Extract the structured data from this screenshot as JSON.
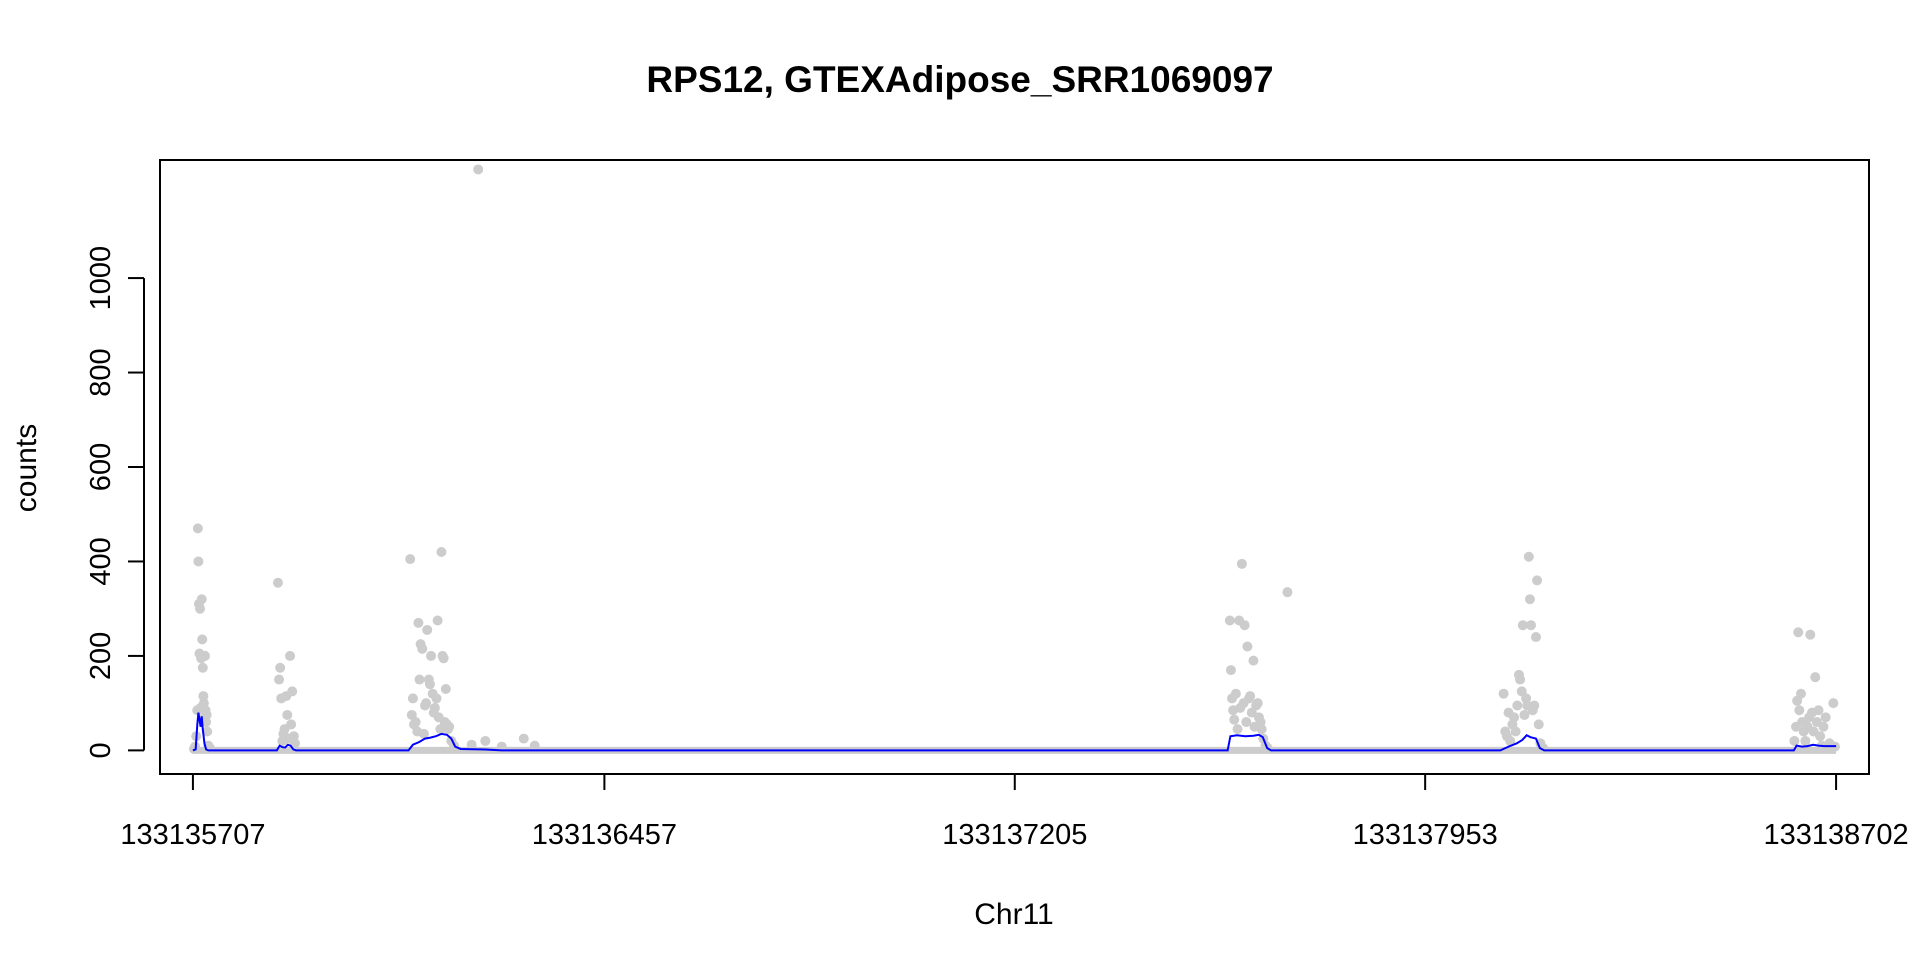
{
  "chart_data": {
    "type": "scatter",
    "title": "RPS12, GTEXAdipose_SRR1069097",
    "xlabel": "Chr11",
    "ylabel": "counts",
    "xlim": [
      133135647,
      133138762
    ],
    "ylim": [
      -50,
      1250
    ],
    "x_ticks": [
      133135707,
      133136457,
      133137205,
      133137953,
      133138702
    ],
    "x_tick_labels": [
      "133135707",
      "133136457",
      "133137205",
      "133137953",
      "133138702"
    ],
    "y_ticks": [
      0,
      200,
      400,
      600,
      800,
      1000
    ],
    "y_tick_labels": [
      "0",
      "200",
      "400",
      "600",
      "800",
      "1000"
    ],
    "grid": false,
    "point_color": "#cccccc",
    "line_color": "#0000ff",
    "series": [
      {
        "type": "scatter",
        "points": [
          [
            133135709,
            3
          ],
          [
            133135711,
            8
          ],
          [
            133135713,
            30
          ],
          [
            133135715,
            85
          ],
          [
            133135716,
            470
          ],
          [
            133135717,
            400
          ],
          [
            133135718,
            310
          ],
          [
            133135719,
            205
          ],
          [
            133135720,
            300
          ],
          [
            133135721,
            90
          ],
          [
            133135722,
            195
          ],
          [
            133135723,
            320
          ],
          [
            133135724,
            235
          ],
          [
            133135725,
            175
          ],
          [
            133135726,
            115
          ],
          [
            133135727,
            100
          ],
          [
            133135728,
            70
          ],
          [
            133135729,
            200
          ],
          [
            133135730,
            85
          ],
          [
            133135731,
            60
          ],
          [
            133135732,
            75
          ],
          [
            133135733,
            40
          ],
          [
            133135735,
            10
          ],
          [
            133135738,
            5
          ],
          [
            133135862,
            355
          ],
          [
            133135864,
            150
          ],
          [
            133135866,
            175
          ],
          [
            133135868,
            110
          ],
          [
            133135870,
            20
          ],
          [
            133135872,
            35
          ],
          [
            133135874,
            45
          ],
          [
            133135877,
            115
          ],
          [
            133135879,
            75
          ],
          [
            133135881,
            25
          ],
          [
            133135884,
            200
          ],
          [
            133135886,
            55
          ],
          [
            133135888,
            125
          ],
          [
            133135891,
            30
          ],
          [
            133135893,
            15
          ],
          [
            133136103,
            405
          ],
          [
            133136106,
            75
          ],
          [
            133136108,
            110
          ],
          [
            133136110,
            55
          ],
          [
            133136113,
            60
          ],
          [
            133136116,
            40
          ],
          [
            133136118,
            270
          ],
          [
            133136120,
            150
          ],
          [
            133136122,
            225
          ],
          [
            133136125,
            215
          ],
          [
            133136128,
            35
          ],
          [
            133136130,
            95
          ],
          [
            133136132,
            100
          ],
          [
            133136134,
            255
          ],
          [
            133136137,
            150
          ],
          [
            133136139,
            140
          ],
          [
            133136141,
            200
          ],
          [
            133136144,
            120
          ],
          [
            133136146,
            80
          ],
          [
            133136148,
            90
          ],
          [
            133136151,
            110
          ],
          [
            133136153,
            275
          ],
          [
            133136155,
            70
          ],
          [
            133136158,
            45
          ],
          [
            133136160,
            420
          ],
          [
            133136162,
            200
          ],
          [
            133136164,
            195
          ],
          [
            133136166,
            60
          ],
          [
            133136168,
            130
          ],
          [
            133136170,
            55
          ],
          [
            133136172,
            45
          ],
          [
            133136174,
            50
          ],
          [
            133136178,
            20
          ],
          [
            133136183,
            10
          ],
          [
            133136227,
            1230
          ],
          [
            133136215,
            12
          ],
          [
            133136240,
            20
          ],
          [
            133136270,
            8
          ],
          [
            133136310,
            25
          ],
          [
            133136330,
            10
          ],
          [
            133137597,
            275
          ],
          [
            133137599,
            170
          ],
          [
            133137601,
            110
          ],
          [
            133137603,
            85
          ],
          [
            133137605,
            65
          ],
          [
            133137608,
            120
          ],
          [
            133137611,
            45
          ],
          [
            133137614,
            275
          ],
          [
            133137616,
            90
          ],
          [
            133137619,
            395
          ],
          [
            133137622,
            100
          ],
          [
            133137624,
            265
          ],
          [
            133137627,
            60
          ],
          [
            133137629,
            220
          ],
          [
            133137632,
            110
          ],
          [
            133137634,
            115
          ],
          [
            133137637,
            80
          ],
          [
            133137640,
            190
          ],
          [
            133137642,
            50
          ],
          [
            133137645,
            95
          ],
          [
            133137648,
            100
          ],
          [
            133137650,
            70
          ],
          [
            133137653,
            60
          ],
          [
            133137655,
            45
          ],
          [
            133137658,
            25
          ],
          [
            133137662,
            10
          ],
          [
            133137666,
            5
          ],
          [
            133137702,
            335
          ],
          [
            133138096,
            120
          ],
          [
            133138099,
            40
          ],
          [
            133138102,
            30
          ],
          [
            133138105,
            80
          ],
          [
            133138108,
            20
          ],
          [
            133138112,
            55
          ],
          [
            133138115,
            70
          ],
          [
            133138118,
            40
          ],
          [
            133138121,
            95
          ],
          [
            133138124,
            160
          ],
          [
            133138126,
            150
          ],
          [
            133138129,
            125
          ],
          [
            133138131,
            265
          ],
          [
            133138134,
            75
          ],
          [
            133138137,
            110
          ],
          [
            133138139,
            95
          ],
          [
            133138142,
            410
          ],
          [
            133138144,
            320
          ],
          [
            133138146,
            265
          ],
          [
            133138149,
            85
          ],
          [
            133138152,
            95
          ],
          [
            133138155,
            240
          ],
          [
            133138157,
            360
          ],
          [
            133138160,
            55
          ],
          [
            133138163,
            15
          ],
          [
            133138168,
            5
          ],
          [
            133138626,
            20
          ],
          [
            133138629,
            50
          ],
          [
            133138631,
            105
          ],
          [
            133138633,
            250
          ],
          [
            133138635,
            85
          ],
          [
            133138638,
            120
          ],
          [
            133138640,
            60
          ],
          [
            133138643,
            40
          ],
          [
            133138646,
            20
          ],
          [
            133138650,
            50
          ],
          [
            133138653,
            70
          ],
          [
            133138655,
            245
          ],
          [
            133138658,
            80
          ],
          [
            133138661,
            40
          ],
          [
            133138664,
            155
          ],
          [
            133138667,
            60
          ],
          [
            133138670,
            85
          ],
          [
            133138673,
            30
          ],
          [
            133138676,
            10
          ],
          [
            133138679,
            50
          ],
          [
            133138683,
            70
          ],
          [
            133138690,
            15
          ],
          [
            133138697,
            100
          ],
          [
            133138700,
            8
          ]
        ]
      },
      {
        "type": "line",
        "points": [
          [
            133135707,
            0
          ],
          [
            133135712,
            2
          ],
          [
            133135715,
            55
          ],
          [
            133135717,
            80
          ],
          [
            133135719,
            65
          ],
          [
            133135721,
            50
          ],
          [
            133135723,
            72
          ],
          [
            133135725,
            45
          ],
          [
            133135728,
            15
          ],
          [
            133135731,
            2
          ],
          [
            133135735,
            0
          ],
          [
            133135860,
            0
          ],
          [
            133135865,
            10
          ],
          [
            133135870,
            7
          ],
          [
            133135875,
            6
          ],
          [
            133135880,
            12
          ],
          [
            133135885,
            10
          ],
          [
            133135890,
            2
          ],
          [
            133135895,
            0
          ],
          [
            133136100,
            0
          ],
          [
            133136108,
            12
          ],
          [
            133136120,
            18
          ],
          [
            133136130,
            25
          ],
          [
            133136140,
            27
          ],
          [
            133136150,
            30
          ],
          [
            133136160,
            35
          ],
          [
            133136170,
            33
          ],
          [
            133136178,
            25
          ],
          [
            133136185,
            8
          ],
          [
            133136195,
            3
          ],
          [
            133136240,
            2
          ],
          [
            133136270,
            0
          ],
          [
            133137593,
            0
          ],
          [
            133137598,
            30
          ],
          [
            133137610,
            32
          ],
          [
            133137625,
            30
          ],
          [
            133137640,
            31
          ],
          [
            133137650,
            33
          ],
          [
            133137657,
            28
          ],
          [
            133137665,
            5
          ],
          [
            133137672,
            0
          ],
          [
            133138090,
            0
          ],
          [
            133138105,
            8
          ],
          [
            133138120,
            15
          ],
          [
            133138130,
            22
          ],
          [
            133138138,
            32
          ],
          [
            133138145,
            28
          ],
          [
            133138155,
            25
          ],
          [
            133138162,
            5
          ],
          [
            133138170,
            0
          ],
          [
            133138625,
            0
          ],
          [
            133138630,
            10
          ],
          [
            133138640,
            8
          ],
          [
            133138650,
            9
          ],
          [
            133138660,
            12
          ],
          [
            133138670,
            10
          ],
          [
            133138680,
            9
          ],
          [
            133138702,
            9
          ]
        ]
      }
    ]
  }
}
